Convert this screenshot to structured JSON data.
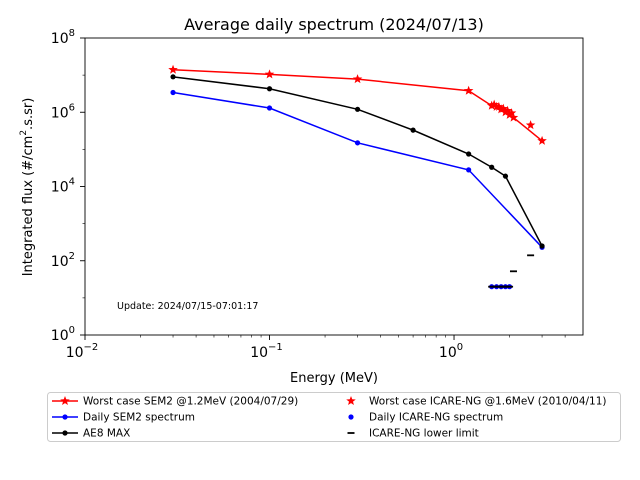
{
  "chart_data": {
    "type": "line",
    "title": "Average daily spectrum (2024/07/13)",
    "xlabel": "Energy (MeV)",
    "ylabel_main": "Integrated flux (#/cm",
    "ylabel_sup": "2",
    "ylabel_tail": ".s.sr)",
    "xscale": "log",
    "yscale": "log",
    "xlim": [
      0.01,
      5
    ],
    "ylim": [
      1,
      100000000
    ],
    "x_ticks": [
      {
        "value": 0.01,
        "base": "10",
        "exp": "−2"
      },
      {
        "value": 0.1,
        "base": "10",
        "exp": "−1"
      },
      {
        "value": 1,
        "base": "10",
        "exp": "0"
      }
    ],
    "y_ticks": [
      {
        "value": 1,
        "base": "10",
        "exp": "0"
      },
      {
        "value": 100,
        "base": "10",
        "exp": "2"
      },
      {
        "value": 10000,
        "base": "10",
        "exp": "4"
      },
      {
        "value": 1000000,
        "base": "10",
        "exp": "6"
      },
      {
        "value": 100000000,
        "base": "10",
        "exp": "8"
      }
    ],
    "annotation": "Update: 2024/07/15-07:01:17",
    "series": [
      {
        "name": "Worst case SEM2 @1.2MeV (2004/07/29)",
        "color": "#ff0000",
        "marker": "star",
        "line": true,
        "points": [
          [
            0.03,
            14000000
          ],
          [
            0.1,
            10500000
          ],
          [
            0.3,
            7800000
          ],
          [
            1.2,
            3800000
          ],
          [
            1.6,
            1500000
          ],
          [
            1.7,
            1400000
          ],
          [
            1.8,
            1200000
          ],
          [
            1.9,
            1000000
          ],
          [
            2.0,
            850000
          ],
          [
            2.1,
            720000
          ],
          [
            3.0,
            170000
          ]
        ]
      },
      {
        "name": "Daily SEM2 spectrum",
        "color": "#0000ff",
        "marker": "dot",
        "line": true,
        "points": [
          [
            0.03,
            3400000
          ],
          [
            0.1,
            1300000
          ],
          [
            0.3,
            150000
          ],
          [
            1.2,
            28000
          ],
          [
            3.0,
            230
          ]
        ]
      },
      {
        "name": "AE8 MAX",
        "color": "#000000",
        "marker": "dot",
        "line": true,
        "points": [
          [
            0.03,
            9000000
          ],
          [
            0.1,
            4300000
          ],
          [
            0.3,
            1200000
          ],
          [
            0.6,
            330000
          ],
          [
            1.2,
            75000
          ],
          [
            1.6,
            33000
          ],
          [
            1.9,
            19000
          ],
          [
            3.0,
            250
          ]
        ]
      },
      {
        "name": "Worst case ICARE-NG @1.6MeV (2010/04/11)",
        "color": "#ff0000",
        "marker": "star",
        "line": false,
        "points": [
          [
            1.65,
            1600000
          ],
          [
            1.75,
            1400000
          ],
          [
            1.85,
            1250000
          ],
          [
            1.95,
            1100000
          ],
          [
            2.05,
            950000
          ],
          [
            2.6,
            450000
          ]
        ]
      },
      {
        "name": "Daily ICARE-NG spectrum",
        "color": "#0000ff",
        "marker": "dot",
        "line": false,
        "points": [
          [
            1.6,
            20
          ],
          [
            1.7,
            20
          ],
          [
            1.8,
            20
          ],
          [
            1.9,
            20
          ],
          [
            2.0,
            20
          ]
        ]
      },
      {
        "name": "ICARE-NG lower limit",
        "color": "#000000",
        "marker": "dash",
        "line": false,
        "points": [
          [
            1.6,
            20
          ],
          [
            1.65,
            20
          ],
          [
            1.7,
            20
          ],
          [
            1.75,
            20
          ],
          [
            1.8,
            20
          ],
          [
            1.85,
            20
          ],
          [
            1.9,
            20
          ],
          [
            1.95,
            20
          ],
          [
            2.0,
            20
          ],
          [
            2.1,
            52
          ],
          [
            2.6,
            140
          ]
        ]
      }
    ],
    "legend": {
      "placement": "bottom",
      "columns": [
        [
          "Worst case SEM2 @1.2MeV (2004/07/29)",
          "Daily SEM2 spectrum",
          "AE8 MAX"
        ],
        [
          "Worst case ICARE-NG @1.6MeV (2010/04/11)",
          "Daily ICARE-NG spectrum",
          "ICARE-NG lower limit"
        ]
      ]
    }
  }
}
